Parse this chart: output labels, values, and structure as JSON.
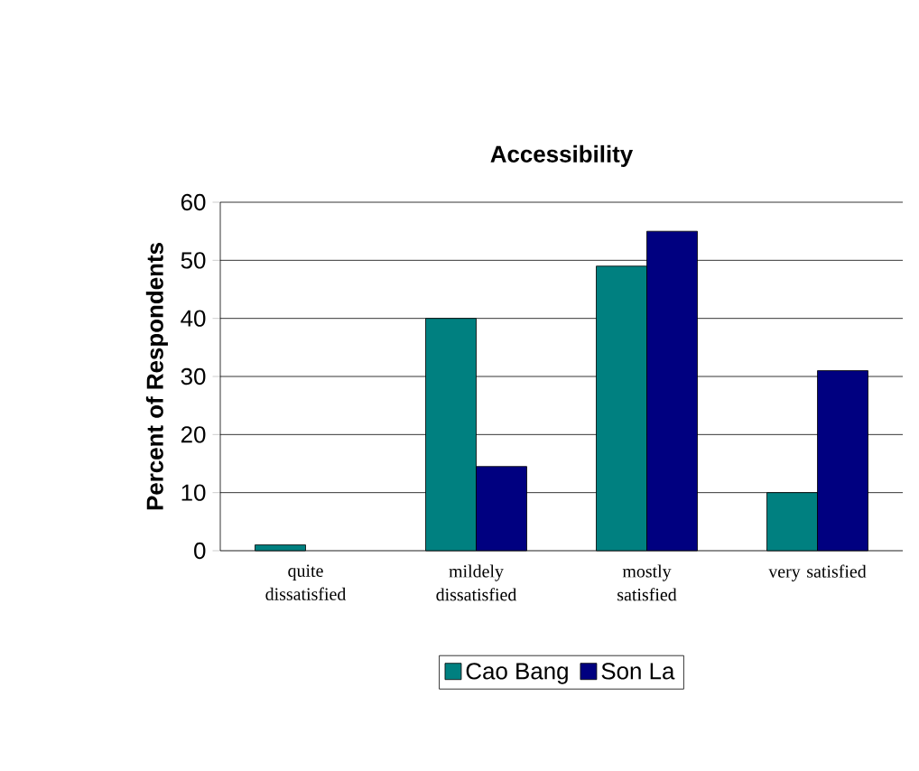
{
  "chart_data": {
    "type": "bar",
    "title": "Accessibility",
    "ylabel": "Percent of Respondents",
    "categories": [
      "quite dissatisfied",
      "mildely dissatisfied",
      "mostly satisfied",
      "very satisfied"
    ],
    "series": [
      {
        "name": "Cao Bang",
        "color": "#008080",
        "values": [
          1,
          40,
          49,
          10
        ]
      },
      {
        "name": "Son La",
        "color": "#000080",
        "values": [
          null,
          14.5,
          55,
          31
        ]
      }
    ],
    "ylim": [
      0,
      60
    ],
    "yticks": [
      0,
      10,
      20,
      30,
      40,
      50,
      60
    ],
    "grid": "y",
    "legend": "bottom"
  }
}
